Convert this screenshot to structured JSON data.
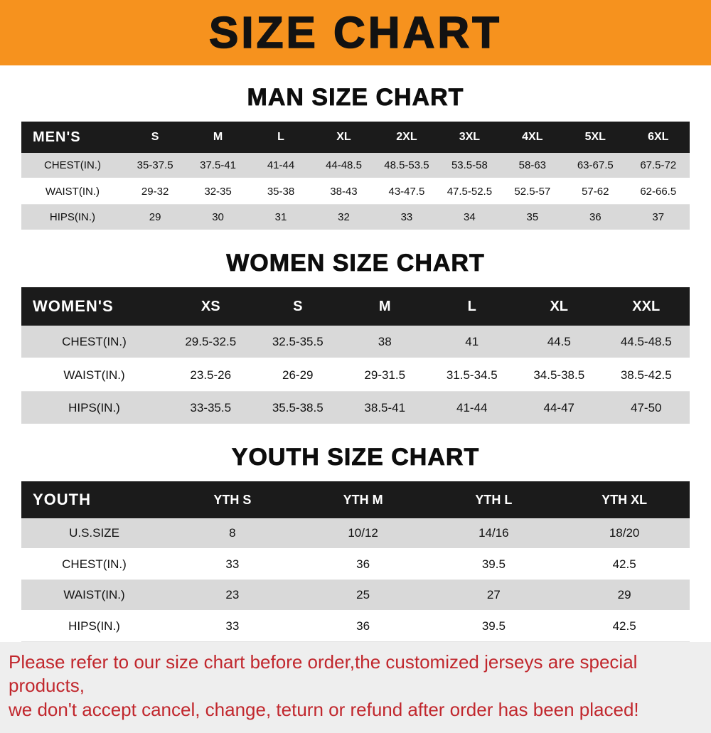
{
  "banner": {
    "title": "SIZE CHART",
    "bg_color": "#F6921E"
  },
  "men": {
    "heading": "MAN SIZE CHART",
    "table": {
      "header": [
        "MEN'S",
        "S",
        "M",
        "L",
        "XL",
        "2XL",
        "3XL",
        "4XL",
        "5XL",
        "6XL"
      ],
      "rows": [
        [
          "CHEST(IN.)",
          "35-37.5",
          "37.5-41",
          "41-44",
          "44-48.5",
          "48.5-53.5",
          "53.5-58",
          "58-63",
          "63-67.5",
          "67.5-72"
        ],
        [
          "WAIST(IN.)",
          "29-32",
          "32-35",
          "35-38",
          "38-43",
          "43-47.5",
          "47.5-52.5",
          "52.5-57",
          "57-62",
          "62-66.5"
        ],
        [
          "HIPS(IN.)",
          "29",
          "30",
          "31",
          "32",
          "33",
          "34",
          "35",
          "36",
          "37"
        ]
      ]
    }
  },
  "women": {
    "heading": "WOMEN SIZE CHART",
    "table": {
      "header": [
        "WOMEN'S",
        "XS",
        "S",
        "M",
        "L",
        "XL",
        "XXL"
      ],
      "rows": [
        [
          "CHEST(IN.)",
          "29.5-32.5",
          "32.5-35.5",
          "38",
          "41",
          "44.5",
          "44.5-48.5"
        ],
        [
          "WAIST(IN.)",
          "23.5-26",
          "26-29",
          "29-31.5",
          "31.5-34.5",
          "34.5-38.5",
          "38.5-42.5"
        ],
        [
          "HIPS(IN.)",
          "33-35.5",
          "35.5-38.5",
          "38.5-41",
          "41-44",
          "44-47",
          "47-50"
        ]
      ]
    }
  },
  "youth": {
    "heading": "YOUTH SIZE CHART",
    "table": {
      "header": [
        "YOUTH",
        "YTH S",
        "YTH M",
        "YTH L",
        "YTH XL"
      ],
      "rows": [
        [
          "U.S.SIZE",
          "8",
          "10/12",
          "14/16",
          "18/20"
        ],
        [
          "CHEST(IN.)",
          "33",
          "36",
          "39.5",
          "42.5"
        ],
        [
          "WAIST(IN.)",
          "23",
          "25",
          "27",
          "29"
        ],
        [
          "HIPS(IN.)",
          "33",
          "36",
          "39.5",
          "42.5"
        ]
      ]
    }
  },
  "footer": {
    "text_color": "#c1272d",
    "lines": [
      "Please refer to our size chart before order,the customized jerseys are special products,",
      "we don't accept cancel, change, teturn or refund after order has been placed!"
    ]
  }
}
